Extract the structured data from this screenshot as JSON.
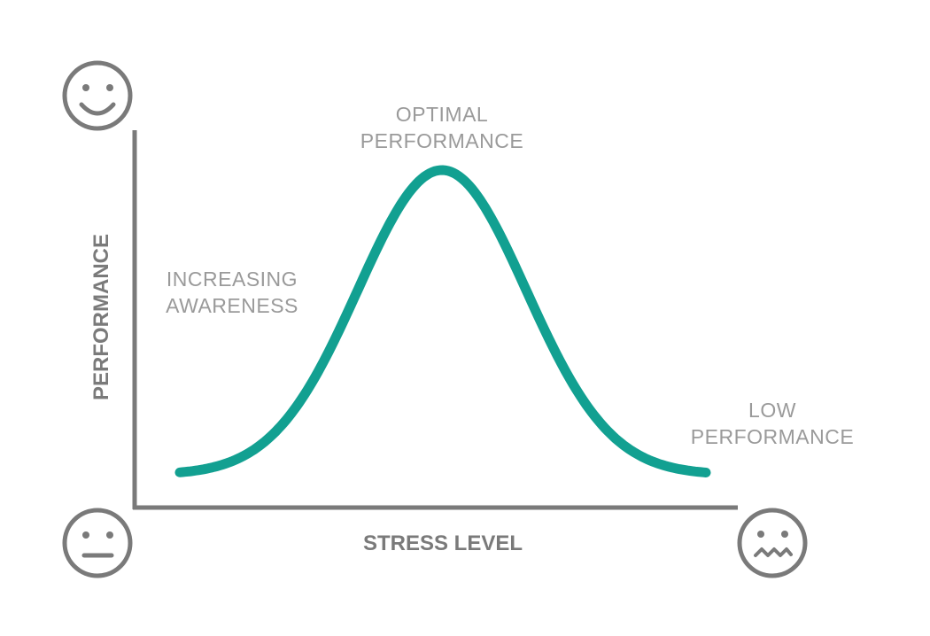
{
  "diagram": {
    "y_axis_label": "PERFORMANCE",
    "x_axis_label": "STRESS LEVEL",
    "annotations": {
      "peak": [
        "OPTIMAL",
        "PERFORMANCE"
      ],
      "rising": [
        "INCREASING",
        "AWARENESS"
      ],
      "falling": [
        "LOW",
        "PERFORMANCE"
      ]
    },
    "icons": {
      "top_left": "happy-face-icon",
      "bottom_left": "neutral-face-icon",
      "bottom_right": "anxious-face-icon"
    },
    "colors": {
      "curve": "#12a091",
      "axes": "#7a7a7a",
      "text": "#9a9a9a"
    }
  }
}
